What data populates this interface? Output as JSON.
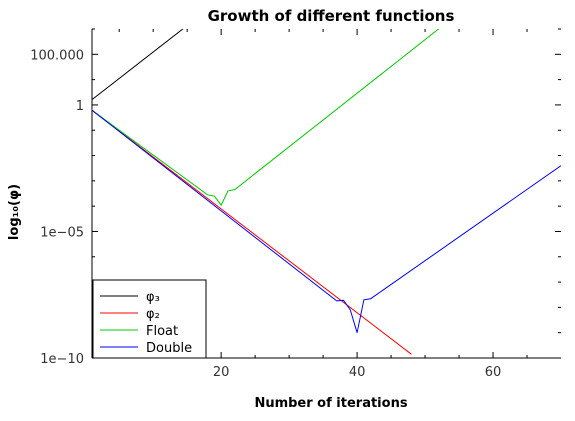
{
  "chart_data": {
    "type": "line",
    "title": "Growth of different functions",
    "xlabel": "Number of iterations",
    "ylabel": "log₁₀(φ)",
    "xlim": [
      1,
      70
    ],
    "ylim": [
      1e-10,
      1000.0
    ],
    "yscale": "log",
    "x_ticks": [
      20,
      40,
      60
    ],
    "x_tick_labels": [
      "20",
      "40",
      "60"
    ],
    "y_ticks": [
      1e-10,
      1e-05,
      1,
      100
    ],
    "y_tick_labels": [
      "1e−10",
      "1e−05",
      "1",
      "100.000"
    ],
    "legend_position": "bottom-left",
    "series": [
      {
        "name": "φ₃",
        "color": "#000000",
        "x": [
          1,
          30
        ],
        "y": [
          1.618,
          1860000.0
        ]
      },
      {
        "name": "φ₂",
        "color": "#ff0000",
        "x": [
          1,
          48
        ],
        "y": [
          0.618,
          1.4e-10
        ]
      },
      {
        "name": "Float",
        "color": "#00cc00",
        "x": [
          1,
          18,
          19,
          20,
          21,
          22,
          69
        ],
        "y": [
          0.618,
          0.00028,
          0.00025,
          0.00011,
          0.0004,
          0.00045,
          4000000.0
        ]
      },
      {
        "name": "Double",
        "color": "#0000ff",
        "x": [
          1,
          37,
          38,
          39,
          40,
          41,
          42,
          70
        ],
        "y": [
          0.618,
          1.8e-08,
          1.9e-08,
          8e-09,
          1e-09,
          2e-08,
          2.2e-08,
          0.004
        ]
      }
    ]
  }
}
